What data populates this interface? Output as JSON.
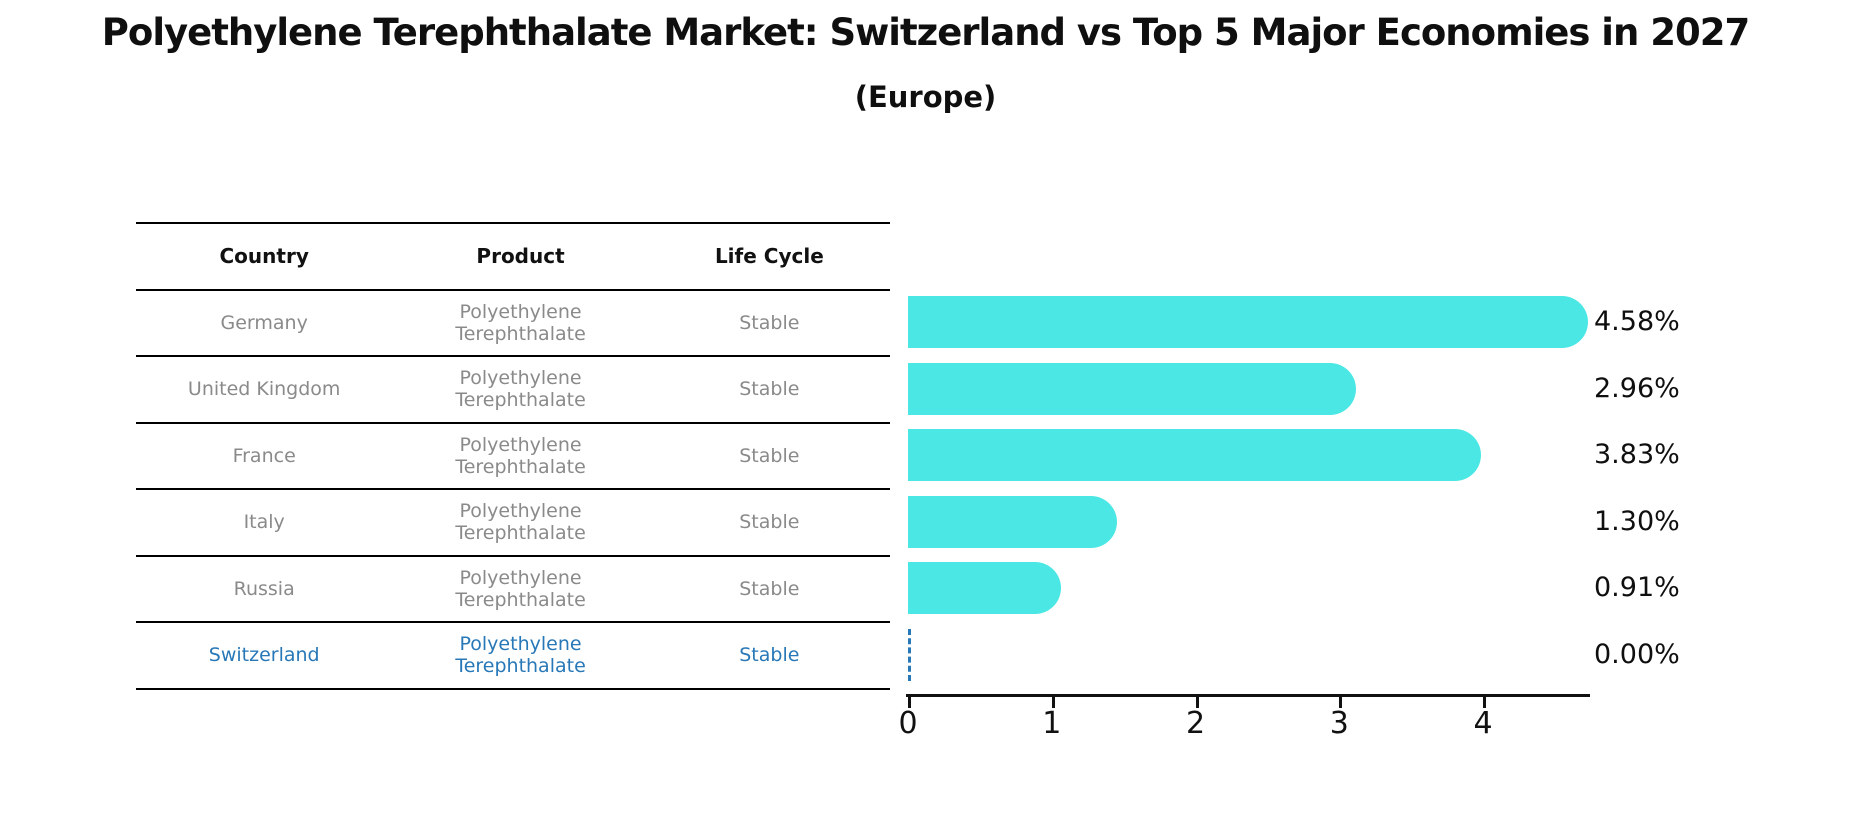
{
  "title": "Polyethylene Terephthalate Market: Switzerland vs Top 5 Major Economies in 2027",
  "subtitle": "(Europe)",
  "table": {
    "headers": [
      "Country",
      "Product",
      "Life Cycle"
    ],
    "rows": [
      {
        "country": "Germany",
        "product": "Polyethylene Terephthalate",
        "life_cycle": "Stable",
        "highlighted": false
      },
      {
        "country": "United Kingdom",
        "product": "Polyethylene Terephthalate",
        "life_cycle": "Stable",
        "highlighted": false
      },
      {
        "country": "France",
        "product": "Polyethylene Terephthalate",
        "life_cycle": "Stable",
        "highlighted": false
      },
      {
        "country": "Italy",
        "product": "Polyethylene Terephthalate",
        "life_cycle": "Stable",
        "highlighted": false
      },
      {
        "country": "Russia",
        "product": "Polyethylene Terephthalate",
        "life_cycle": "Stable",
        "highlighted": false
      },
      {
        "country": "Switzerland",
        "product": "Polyethylene Terephthalate",
        "life_cycle": "Stable",
        "highlighted": true
      }
    ]
  },
  "chart_data": {
    "type": "bar",
    "orientation": "horizontal",
    "title": "Polyethylene Terephthalate Market: Switzerland vs Top 5 Major Economies in 2027",
    "subtitle": "(Europe)",
    "categories": [
      "Germany",
      "United Kingdom",
      "France",
      "Italy",
      "Russia",
      "Switzerland"
    ],
    "values": [
      4.58,
      2.96,
      3.83,
      1.3,
      0.91,
      0.0
    ],
    "value_labels": [
      "4.58%",
      "2.96%",
      "3.83%",
      "1.30%",
      "0.91%",
      "0.00%"
    ],
    "x_ticks": [
      "0",
      "1",
      "2",
      "3",
      "4"
    ],
    "xlim": [
      0,
      4.73
    ],
    "grid": false,
    "legend": "none",
    "bar_color": "#4BE7E4",
    "highlight_color": "#2878B8",
    "zero_bar_style": "dashed"
  },
  "colors": {
    "background": "#ffffff",
    "text": "#0f0f0f",
    "muted_text": "#8a8a8a",
    "table_line": "#000000"
  }
}
